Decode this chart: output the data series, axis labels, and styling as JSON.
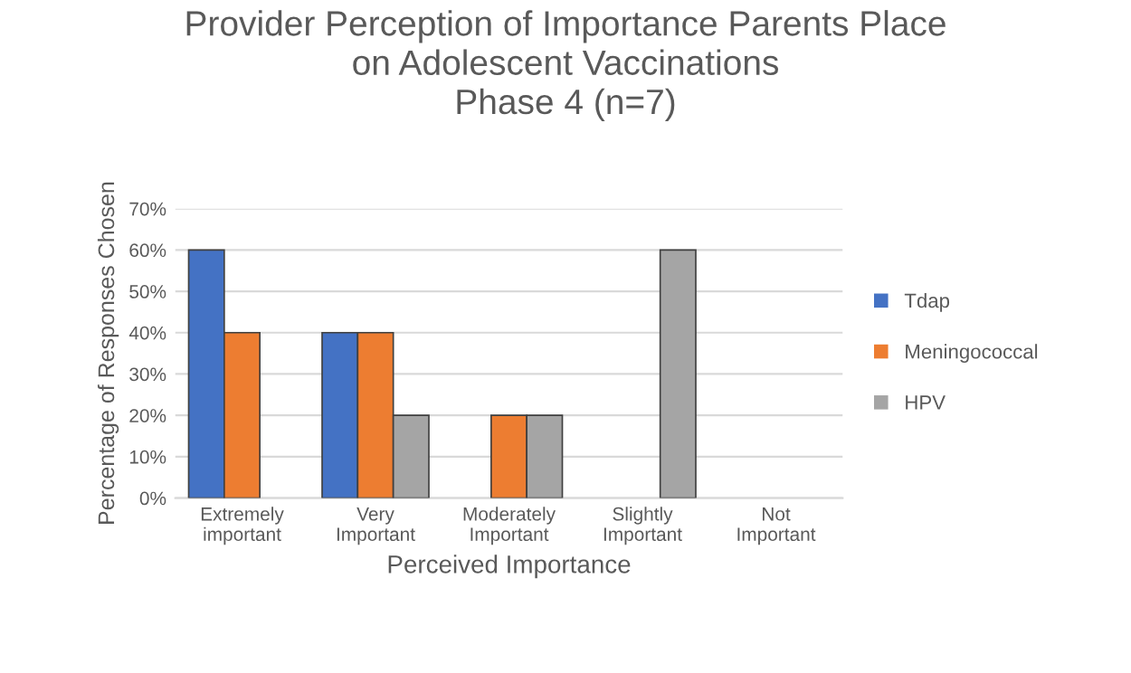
{
  "chart_data": {
    "type": "bar",
    "title": "Provider Perception of Importance Parents Place\non Adolescent Vaccinations\nPhase 4 (n=7)",
    "xlabel": "Perceived Importance",
    "ylabel": "Percentage of Responses Chosen",
    "categories": [
      "Extremely\nimportant",
      "Very\nImportant",
      "Moderately\nImportant",
      "Slightly\nImportant",
      "Not\nImportant"
    ],
    "series": [
      {
        "name": "Tdap",
        "color": "#4472c4",
        "values": [
          60,
          40,
          0,
          0,
          0
        ]
      },
      {
        "name": "Meningococcal",
        "color": "#ed7d31",
        "values": [
          40,
          40,
          20,
          0,
          0
        ]
      },
      {
        "name": "HPV",
        "color": "#a5a5a5",
        "values": [
          0,
          20,
          20,
          60,
          0
        ]
      }
    ],
    "ylim": [
      0,
      70
    ],
    "yticks": [
      {
        "value": 0,
        "label": "0%"
      },
      {
        "value": 10,
        "label": "10%"
      },
      {
        "value": 20,
        "label": "20%"
      },
      {
        "value": 30,
        "label": "30%"
      },
      {
        "value": 40,
        "label": "40%"
      },
      {
        "value": 50,
        "label": "50%"
      },
      {
        "value": 60,
        "label": "60%"
      },
      {
        "value": 70,
        "label": "70%"
      }
    ],
    "grid": "y",
    "legend": "right"
  }
}
